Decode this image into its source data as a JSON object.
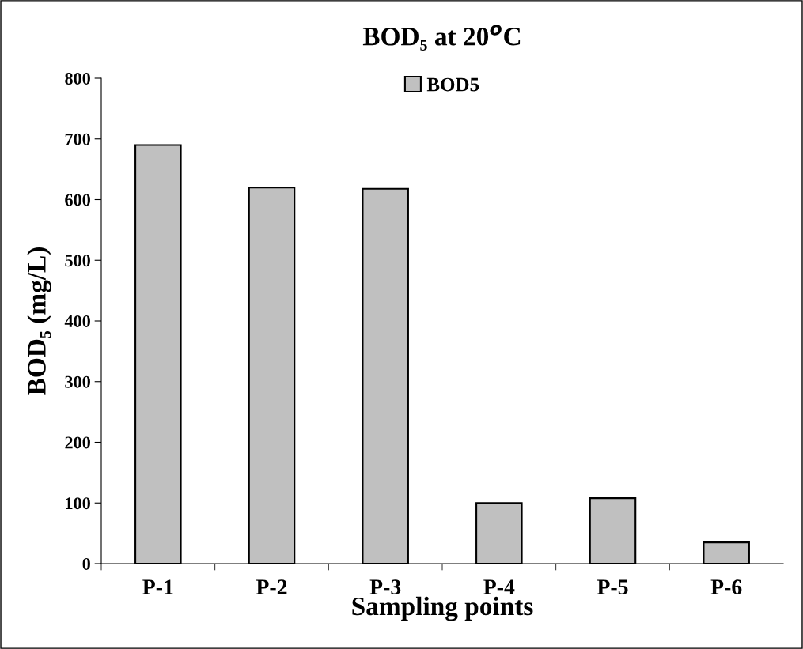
{
  "chart_data": {
    "type": "bar",
    "title": "BOD₅ at 20$^{o}$C",
    "xlabel": "Sampling points",
    "ylabel": "BOD₅ (mg/L)",
    "categories": [
      "P-1",
      "P-2",
      "P-3",
      "P-4",
      "P-5",
      "P-6"
    ],
    "series": [
      {
        "name": "BOD5",
        "color": "#c0c0c0",
        "values": [
          690,
          620,
          618,
          100,
          108,
          35
        ]
      }
    ],
    "ylim": [
      0,
      800
    ],
    "yticks": [
      0,
      100,
      200,
      300,
      400,
      500,
      600,
      700,
      800
    ],
    "grid": false,
    "legend": "top"
  }
}
